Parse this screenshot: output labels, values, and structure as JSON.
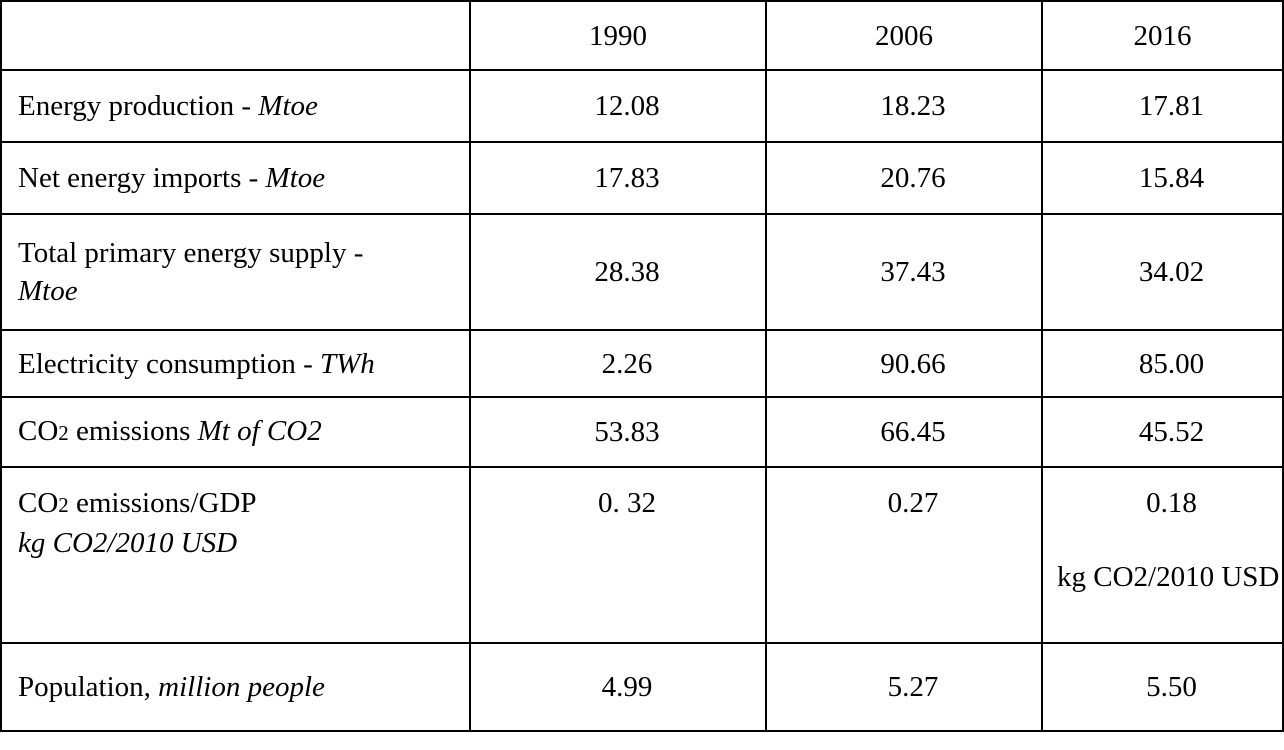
{
  "table": {
    "header": [
      "",
      "1990",
      "2006",
      "2016"
    ],
    "rows": [
      {
        "label": "Energy production - ",
        "unit": "Mtoe",
        "values": [
          "12.08",
          "18.23",
          "17.81"
        ]
      },
      {
        "label": "Net energy imports - ",
        "unit": "Mtoe",
        "values": [
          "17.83",
          "20.76",
          "15.84"
        ]
      },
      {
        "label": "Total primary energy supply -",
        "unit": "Mtoe",
        "values": [
          "28.38",
          "37.43",
          "34.02"
        ]
      },
      {
        "label": "Electricity consumption - ",
        "unit": "TWh",
        "values": [
          "2.26",
          "90.66",
          "85.00"
        ]
      },
      {
        "label_prefix": "CO",
        "label_sub": "2",
        "label_rest": " emissions ",
        "unit": "Mt of CO2",
        "values": [
          "53.83",
          "66.45",
          "45.52"
        ]
      },
      {
        "label_prefix": "CO",
        "label_sub": "2",
        "label_rest": " emissions/GDP",
        "unit": "kg CO2/2010 USD",
        "values": [
          "0. 32",
          "0.27",
          "0.18"
        ],
        "note_2016": "kg CO2/2010 USD"
      },
      {
        "label": "Population, ",
        "unit": "million people",
        "values": [
          "4.99",
          "5.27",
          "5.50"
        ]
      }
    ]
  }
}
